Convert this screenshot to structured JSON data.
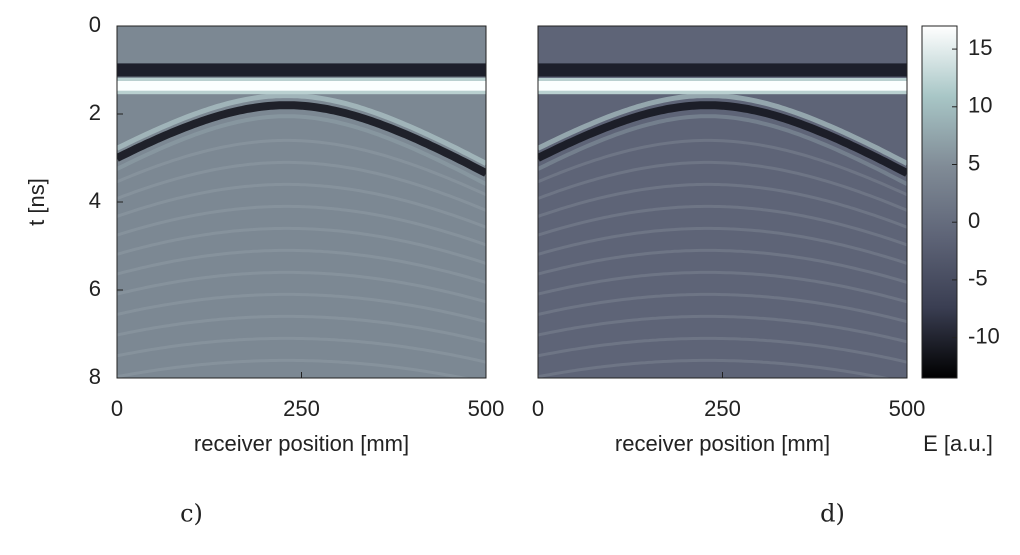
{
  "chart_data": [
    {
      "type": "heatmap",
      "panel_label": "c)",
      "xlabel": "receiver position [mm]",
      "ylabel": "t [ns]",
      "xlim": [
        0,
        500
      ],
      "xticks": [
        0,
        250,
        500
      ],
      "ylim": [
        8,
        0
      ],
      "yticks": [
        0,
        2,
        4,
        6,
        8
      ],
      "background": "#7c8893"
    },
    {
      "type": "heatmap",
      "panel_label": "d)",
      "xlabel": "receiver position [mm]",
      "xlim": [
        0,
        500
      ],
      "xticks": [
        0,
        250,
        500
      ],
      "ylim": [
        8,
        0
      ],
      "background": "#5e6477"
    },
    {
      "type": "colorbar",
      "label": "E [a.u.]",
      "lim": [
        -13.5,
        17
      ],
      "ticks": [
        -10,
        -5,
        0,
        5,
        10,
        15
      ],
      "colors": [
        "#000000",
        "#3a3e52",
        "#5e6477",
        "#808b96",
        "#a8c6c6",
        "#ffffff"
      ]
    }
  ]
}
